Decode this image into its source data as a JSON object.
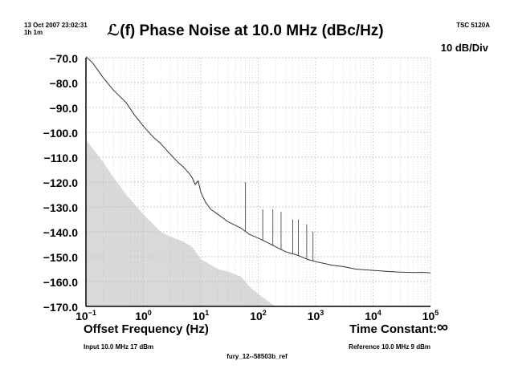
{
  "header": {
    "timestamp": "13 Oct 2007 23:02:31",
    "elapsed": "1h 1m",
    "title": "ℒ(f) Phase Noise at 10.0 MHz (dBc/Hz)",
    "instrument": "TSC 5120A",
    "scale": "10 dB/Div"
  },
  "footer": {
    "xlabel": "Offset Frequency (Hz)",
    "time_constant_label": "Time Constant:",
    "time_constant_value": "∞",
    "input": "Input 10.0 MHz 17 dBm",
    "reference": "Reference 10.0 MHz 9 dBm",
    "filename": "fury_12--58503b_ref"
  },
  "colors": {
    "trace": "#333333",
    "floor": "#d9d9d9",
    "grid": "#bdbdbd",
    "axis": "#000000"
  },
  "chart_data": {
    "type": "line",
    "title": "ℒ(f) Phase Noise at 10.0 MHz (dBc/Hz)",
    "xlabel": "Offset Frequency (Hz)",
    "ylabel": "",
    "xscale": "log",
    "xlim": [
      0.1,
      100000
    ],
    "ylim": [
      -170,
      -70
    ],
    "grid": true,
    "x_ticks": [
      {
        "value": 0.1,
        "base": "10",
        "exp": "−1"
      },
      {
        "value": 1,
        "base": "10",
        "exp": "0"
      },
      {
        "value": 10,
        "base": "10",
        "exp": "1"
      },
      {
        "value": 100,
        "base": "10",
        "exp": "2"
      },
      {
        "value": 1000,
        "base": "10",
        "exp": "3"
      },
      {
        "value": 10000,
        "base": "10",
        "exp": "4"
      },
      {
        "value": 100000,
        "base": "10",
        "exp": "5"
      }
    ],
    "y_ticks": [
      {
        "value": -70,
        "label": "−70.0"
      },
      {
        "value": -80,
        "label": "−80.0"
      },
      {
        "value": -90,
        "label": "−90.0"
      },
      {
        "value": -100,
        "label": "−100.0"
      },
      {
        "value": -110,
        "label": "−110.0"
      },
      {
        "value": -120,
        "label": "−120.0"
      },
      {
        "value": -130,
        "label": "−130.0"
      },
      {
        "value": -140,
        "label": "−140.0"
      },
      {
        "value": -150,
        "label": "−150.0"
      },
      {
        "value": -160,
        "label": "−160.0"
      },
      {
        "value": -170,
        "label": "−170.0"
      }
    ],
    "series": [
      {
        "role": "phase-noise-trace",
        "x": [
          0.1,
          0.13,
          0.2,
          0.3,
          0.5,
          0.7,
          1,
          1.5,
          2,
          3,
          4,
          5,
          6,
          7,
          8,
          9,
          10,
          12,
          15,
          20,
          30,
          50,
          70,
          100,
          150,
          200,
          300,
          500,
          700,
          1000,
          2000,
          3000,
          5000,
          10000,
          20000,
          30000,
          50000,
          70000,
          100000
        ],
        "y": [
          -69.5,
          -72,
          -78,
          -83,
          -88,
          -93,
          -97.5,
          -102,
          -104.5,
          -109,
          -112,
          -114,
          -116,
          -118,
          -121,
          -119.5,
          -124,
          -128,
          -131,
          -133,
          -136,
          -138.5,
          -141,
          -142.5,
          -144.5,
          -146,
          -148,
          -149.5,
          -151,
          -152,
          -153.5,
          -154,
          -155,
          -155.5,
          -156,
          -156.2,
          -156.4,
          -156.3,
          -156.5
        ]
      },
      {
        "role": "measurement-floor",
        "x": [
          0.1,
          0.2,
          0.3,
          0.5,
          1,
          2,
          3,
          5,
          7,
          10,
          20,
          30,
          50,
          70,
          100,
          150,
          200
        ],
        "y": [
          -103,
          -112,
          -118,
          -125,
          -133,
          -140,
          -142,
          -144,
          -146,
          -151,
          -155,
          -156,
          -158,
          -162,
          -165,
          -168,
          -170
        ]
      }
    ],
    "spurs": [
      {
        "x": 60,
        "y": -120
      },
      {
        "x": 120,
        "y": -131
      },
      {
        "x": 180,
        "y": -131
      },
      {
        "x": 250,
        "y": -132
      },
      {
        "x": 400,
        "y": -135
      },
      {
        "x": 500,
        "y": -135
      },
      {
        "x": 700,
        "y": -137
      },
      {
        "x": 900,
        "y": -140
      }
    ]
  }
}
